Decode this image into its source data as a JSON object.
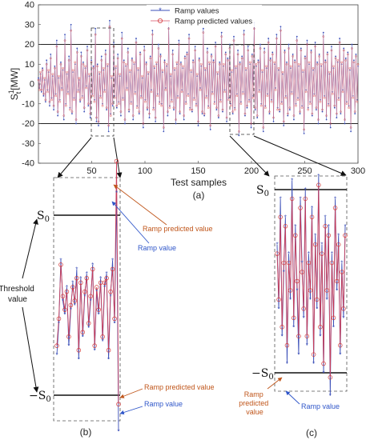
{
  "chart_data": {
    "type": "line",
    "panel_label": "(a)",
    "xlabel": "Test samples",
    "ylabel": "S",
    "ylabel_sup": "1",
    "ylabel_sub": "t",
    "ylabel_unit": "[MW]",
    "xlim": [
      0,
      300
    ],
    "ylim": [
      -40,
      40
    ],
    "x_ticks": [
      50,
      100,
      150,
      200,
      250,
      300
    ],
    "y_ticks": [
      40,
      30,
      20,
      10,
      0,
      -10,
      -20,
      -30,
      -40
    ],
    "thresholds": [
      20,
      -20
    ],
    "legend": [
      "Ramp values",
      "Ramp predicted values"
    ],
    "legend_position": "top-center",
    "series": [
      {
        "name": "Ramp values",
        "color": "#3b4fb8",
        "marker": "asterisk",
        "values": [
          3,
          -2,
          5,
          -4,
          8,
          -6,
          2,
          -9,
          12,
          -3,
          6,
          -11,
          15,
          -7,
          4,
          -13,
          9,
          -5,
          22,
          -16,
          3,
          -8,
          11,
          -2,
          7,
          -18,
          25,
          -10,
          5,
          -4,
          14,
          -12,
          30,
          -15,
          6,
          -7,
          10,
          -20,
          18,
          -3,
          2,
          -9,
          16,
          -6,
          11,
          -14,
          8,
          -1,
          19,
          -11,
          4,
          -17,
          12,
          -5,
          9,
          -8,
          28,
          -19,
          10,
          -21,
          5,
          -6,
          14,
          -10,
          7,
          -3,
          17,
          -13,
          9,
          -24,
          32,
          -15,
          3,
          -11,
          21,
          -6,
          8,
          -12,
          15,
          -9,
          4,
          -16,
          26,
          -7,
          12,
          -20,
          9,
          -2,
          18,
          -14,
          6,
          -9,
          13,
          -18,
          10,
          -4,
          23,
          -11,
          7,
          -15,
          16,
          -6,
          3,
          -22,
          19,
          -8,
          11,
          -13,
          5,
          -17,
          14,
          -3,
          27,
          -12,
          8,
          -19,
          10,
          -5,
          20,
          -9,
          15,
          -10,
          6,
          -24,
          12,
          -2,
          9,
          -16,
          31,
          -11,
          4,
          -8,
          17,
          -13,
          7,
          -20,
          10,
          -6,
          22,
          -15,
          11,
          -3,
          8,
          -18,
          14,
          -9,
          16,
          -5,
          25,
          -12,
          6,
          -14,
          12,
          -7,
          19,
          -10,
          4,
          -21,
          13,
          -2,
          9,
          -15,
          28,
          -16,
          7,
          -6,
          18,
          -11,
          10,
          -23,
          15,
          -4,
          12,
          -9,
          21,
          -13,
          5,
          -17,
          11,
          -8,
          26,
          -14,
          9,
          -3,
          16,
          -19,
          13,
          -7,
          20,
          -10,
          6,
          -15,
          24,
          -12,
          8,
          -5,
          17,
          -26,
          11,
          -9,
          14,
          -4,
          27,
          -16,
          7,
          -12,
          19,
          -8,
          10,
          -22,
          15,
          -6,
          31,
          -13,
          9,
          -17,
          12,
          -3,
          20,
          -10,
          6,
          -24,
          18,
          -11,
          8,
          -5,
          23,
          -15,
          13,
          -8,
          16,
          -19,
          10,
          -2,
          25,
          -12,
          7,
          -14,
          29,
          -9,
          5,
          -21,
          17,
          -6,
          11,
          -16,
          20,
          -13,
          8,
          -4,
          15,
          -18,
          12,
          -10,
          24,
          -7,
          9,
          -15,
          18,
          -11,
          6,
          -25,
          14,
          -3,
          22,
          -12,
          10,
          -9,
          17,
          -16,
          7,
          -5,
          21,
          -13,
          11,
          -20,
          15,
          -8,
          9,
          -14,
          26,
          -6,
          12,
          -18,
          16,
          -10,
          5,
          -22,
          19,
          -4,
          8,
          -12,
          14,
          -17,
          11,
          -7,
          23,
          -15,
          10,
          -3,
          18,
          -20,
          13,
          -9,
          16,
          -11,
          7,
          -24,
          20,
          -6,
          12,
          -15,
          15,
          -8,
          9
        ]
      },
      {
        "name": "Ramp predicted values",
        "color": "#e07a8a",
        "marker": "circle",
        "values": [
          2,
          -3,
          6,
          -3,
          7,
          -5,
          3,
          -8,
          10,
          -4,
          7,
          -9,
          13,
          -8,
          5,
          -11,
          8,
          -6,
          19,
          -14,
          4,
          -9,
          10,
          -3,
          8,
          -16,
          22,
          -11,
          6,
          -5,
          12,
          -13,
          27,
          -14,
          7,
          -8,
          11,
          -18,
          16,
          -4,
          3,
          -8,
          14,
          -7,
          10,
          -12,
          9,
          -2,
          17,
          -10,
          5,
          -15,
          11,
          -6,
          8,
          -9,
          25,
          -17,
          9,
          -19,
          6,
          -7,
          12,
          -11,
          8,
          -4,
          15,
          -12,
          10,
          -21,
          29,
          -16,
          4,
          -10,
          19,
          -7,
          9,
          -11,
          13,
          -10,
          5,
          -14,
          23,
          -8,
          11,
          -18,
          10,
          -3,
          16,
          -13,
          7,
          -10,
          12,
          -16,
          11,
          -5,
          21,
          -12,
          8,
          -14,
          15,
          -7,
          4,
          -20,
          17,
          -9,
          10,
          -12,
          6,
          -15,
          13,
          -4,
          25,
          -13,
          9,
          -17,
          11,
          -6,
          18,
          -10,
          14,
          -11,
          7,
          -22,
          11,
          -3,
          10,
          -14,
          28,
          -12,
          5,
          -9,
          15,
          -12,
          8,
          -18,
          11,
          -7,
          20,
          -14,
          10,
          -4,
          9,
          -16,
          13,
          -10,
          15,
          -6,
          23,
          -13,
          7,
          -13,
          11,
          -8,
          17,
          -11,
          5,
          -19,
          12,
          -3,
          10,
          -14,
          26,
          -15,
          8,
          -7,
          16,
          -12,
          11,
          -21,
          14,
          -5,
          11,
          -10,
          19,
          -12,
          6,
          -16,
          10,
          -9,
          24,
          -13,
          10,
          -4,
          15,
          -17,
          12,
          -8,
          18,
          -11,
          7,
          -14,
          22,
          -13,
          9,
          -6,
          15,
          -24,
          10,
          -10,
          13,
          -5,
          25,
          -15,
          8,
          -11,
          17,
          -9,
          11,
          -20,
          14,
          -7,
          28,
          -12,
          10,
          -16,
          11,
          -4,
          18,
          -11,
          7,
          -22,
          16,
          -12,
          9,
          -6,
          21,
          -14,
          12,
          -9,
          15,
          -17,
          11,
          -3,
          23,
          -13,
          8,
          -13,
          27,
          -10,
          6,
          -19,
          16,
          -7,
          10,
          -15,
          18,
          -12,
          9,
          -5,
          14,
          -16,
          11,
          -11,
          22,
          -8,
          10,
          -14,
          17,
          -12,
          7,
          -23,
          13,
          -4,
          20,
          -13,
          11,
          -10,
          16,
          -15,
          8,
          -6,
          19,
          -12,
          10,
          -18,
          14,
          -9,
          10,
          -13,
          24,
          -7,
          11,
          -16,
          15,
          -11,
          6,
          -20,
          17,
          -5,
          9,
          -11,
          13,
          -15,
          12,
          -8,
          21,
          -14,
          11,
          -4,
          17,
          -18,
          12,
          -10,
          15,
          -12,
          8,
          -22,
          18,
          -7,
          11,
          -14,
          14,
          -9,
          10
        ]
      }
    ],
    "zoom_b": {
      "label": "(b)",
      "source_range": [
        55,
        73
      ],
      "threshold_label": "S",
      "threshold_sub": "0",
      "neg_threshold_prefix": "−",
      "side_label": "Threshold value",
      "annotations": [
        "Ramp predicted value",
        "Ramp value",
        "Ramp predicted value",
        "Ramp value"
      ],
      "ramp_values": [
        -0.55,
        -0.2,
        0.5,
        0.05,
        -0.1,
        0.2,
        -0.45,
        -0.05,
        0.25,
        0.0,
        0.4,
        -0.6,
        0.3,
        -0.35,
        0.1,
        0.35,
        -0.25,
        0.05,
        0.45,
        -0.5,
        0.15,
        -0.1,
        0.3,
        -0.4,
        0.2,
        0.35,
        -0.6,
        0.1,
        0.5,
        -0.2,
        1.25,
        -1.4
      ],
      "predicted_values": [
        -0.45,
        -0.15,
        0.45,
        0.1,
        -0.05,
        0.15,
        -0.35,
        0.0,
        0.2,
        0.05,
        0.3,
        -0.5,
        0.25,
        -0.3,
        0.15,
        0.3,
        -0.2,
        0.1,
        0.4,
        -0.45,
        0.2,
        -0.05,
        0.25,
        -0.35,
        0.25,
        0.3,
        -0.5,
        0.15,
        0.4,
        -0.15,
        1.6,
        -1.1
      ]
    },
    "zoom_c": {
      "label": "(c)",
      "source_range": [
        183,
        208
      ],
      "annotations": [
        "Ramp predicted value",
        "Ramp value"
      ],
      "ramp_values": [
        0.4,
        -0.3,
        0.9,
        -0.6,
        0.1,
        0.7,
        -0.9,
        0.3,
        -0.2,
        1.1,
        -0.5,
        0.6,
        -0.1,
        -0.8,
        0.9,
        0.2,
        -0.4,
        1.0,
        -0.7,
        0.3,
        -0.2,
        0.8,
        -0.9,
        0.5,
        -0.3,
        1.15,
        -0.6,
        0.4,
        -1.0,
        0.7,
        -0.2,
        0.6,
        -1.25,
        0.3,
        -0.5,
        0.9,
        -0.1,
        0.5,
        -0.8,
        0.2,
        -0.4,
        0.6
      ],
      "predicted_values": [
        0.3,
        -0.2,
        0.7,
        -0.5,
        0.2,
        0.6,
        -0.7,
        0.2,
        -0.1,
        0.9,
        -0.4,
        0.5,
        0.0,
        -0.6,
        0.8,
        0.1,
        -0.3,
        0.9,
        -0.6,
        0.2,
        -0.1,
        0.7,
        -0.8,
        0.4,
        -0.2,
        1.05,
        -0.5,
        0.3,
        -0.9,
        0.6,
        -0.1,
        0.5,
        -1.05,
        0.2,
        -0.4,
        0.8,
        0.0,
        0.4,
        -0.7,
        0.1,
        -0.3,
        0.5
      ]
    }
  }
}
